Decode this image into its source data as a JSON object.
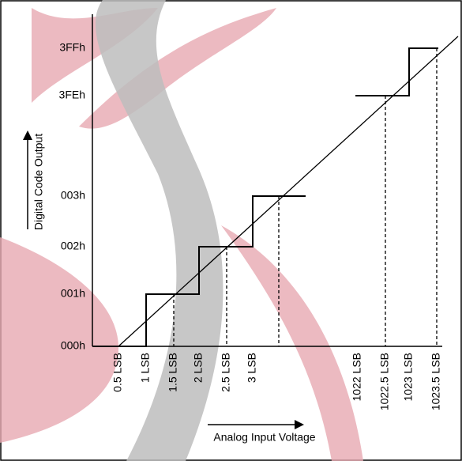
{
  "diagram": {
    "y_labels": [
      "000h",
      "001h",
      "002h",
      "003h",
      "3FEh",
      "3FFh"
    ],
    "x_labels": [
      "0.5 LSB",
      "1 LSB",
      "1.5 LSB",
      "2 LSB",
      "2.5 LSB",
      "3 LSB",
      "1022 LSB",
      "1022.5 LSB",
      "1023 LSB",
      "1023.5 LSB"
    ],
    "y_axis_title": "Digital Code Output",
    "x_axis_title": "Analog Input Voltage"
  }
}
